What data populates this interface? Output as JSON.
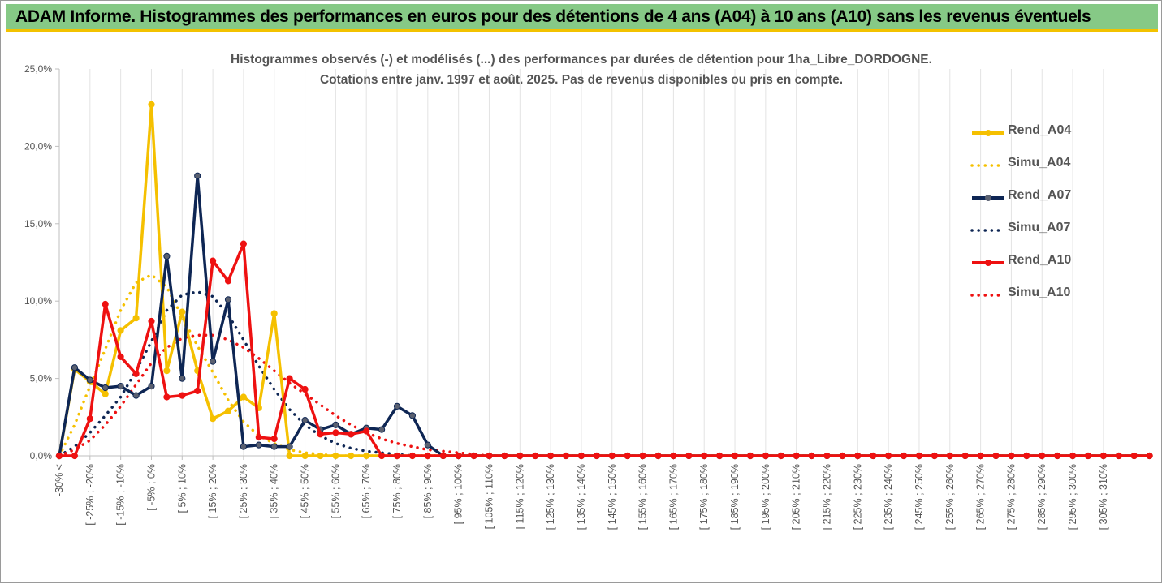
{
  "banner": {
    "title": "ADAM Informe. Histogrammes des performances en euros pour des détentions de 4 ans (A04) à 10 ans (A10) sans les revenus éventuels"
  },
  "chart_data": {
    "type": "line",
    "title_line1": "Histogrammes observés (-) et modélisés (...) des performances par durées de détention pour 1ha_Libre_DORDOGNE.",
    "title_line2": "Cotations entre janv. 1997 et août. 2025. Pas de revenus disponibles ou pris en compte.",
    "xlabel": "",
    "ylabel": "",
    "ylim": [
      0,
      25
    ],
    "yticks": [
      "0,0%",
      "5,0%",
      "10,0%",
      "15,0%",
      "20,0%",
      "25,0%"
    ],
    "grid": "vertical",
    "legend_position": "right",
    "x_labels_shown": [
      "-30% <",
      "[ -25% ; -20%",
      "[ -15% ; -10%",
      "[ -5% ; 0%",
      "[ 5% ; 10%",
      "[ 15% ; 20%",
      "[ 25% ; 30%",
      "[ 35% ; 40%",
      "[ 45% ; 50%",
      "[ 55% ; 60%",
      "[ 65% ; 70%",
      "[ 75% ; 80%",
      "[ 85% ; 90%",
      "[ 95% ; 100%",
      "[ 105% ; 110%",
      "[ 115% ; 120%",
      "[ 125% ; 130%",
      "[ 135% ; 140%",
      "[ 145% ; 150%",
      "[ 155% ; 160%",
      "[ 165% ; 170%",
      "[ 175% ; 180%",
      "[ 185% ; 190%",
      "[ 195% ; 200%",
      "[ 205% ; 210%",
      "[ 215% ; 220%",
      "[ 225% ; 230%",
      "[ 235% ; 240%",
      "[ 245% ; 250%",
      "[ 255% ; 260%",
      "[ 265% ; 270%",
      "[ 275% ; 280%",
      "[ 285% ; 290%",
      "[ 295% ; 300%",
      "[ 305% ; 310%"
    ],
    "series": [
      {
        "name": "Rend_A04",
        "style": "solid",
        "color": "#f5c000",
        "markers": true,
        "values": [
          0.0,
          5.6,
          4.8,
          4.0,
          8.1,
          8.9,
          22.7,
          5.5,
          9.3,
          5.5,
          2.4,
          2.9,
          3.8,
          3.1,
          9.2,
          0.0,
          0.0,
          0.0,
          0.0,
          0.0,
          0.0,
          0.0,
          0.0,
          0.0,
          0.0,
          0.0,
          0.0,
          0.0,
          0.0,
          0.0,
          0.0,
          0.0,
          0.0,
          0.0,
          0.0,
          0.0,
          0.0,
          0.0,
          0.0,
          0.0,
          0.0,
          0.0,
          0.0,
          0.0,
          0.0,
          0.0,
          0.0,
          0.0,
          0.0,
          0.0,
          0.0,
          0.0,
          0.0,
          0.0,
          0.0,
          0.0,
          0.0,
          0.0,
          0.0,
          0.0,
          0.0,
          0.0,
          0.0,
          0.0,
          0.0,
          0.0,
          0.0,
          0.0,
          0.0,
          0.0,
          0.0,
          0.0
        ]
      },
      {
        "name": "Simu_A04",
        "style": "dotted",
        "color": "#f5c000",
        "markers": false,
        "values": [
          0.0,
          2.0,
          4.5,
          6.9,
          9.4,
          11.2,
          11.7,
          10.9,
          9.0,
          7.1,
          5.4,
          3.6,
          2.2,
          1.3,
          0.8,
          0.4,
          0.2,
          0.1,
          0.0,
          0.0,
          0.0,
          0.0,
          0.0,
          0.0,
          0.0,
          0.0,
          0.0,
          0.0,
          0.0,
          0.0,
          0.0,
          0.0,
          0.0,
          0.0,
          0.0,
          0.0,
          0.0,
          0.0,
          0.0,
          0.0,
          0.0,
          0.0,
          0.0,
          0.0,
          0.0,
          0.0,
          0.0,
          0.0,
          0.0,
          0.0,
          0.0,
          0.0,
          0.0,
          0.0,
          0.0,
          0.0,
          0.0,
          0.0,
          0.0,
          0.0,
          0.0,
          0.0,
          0.0,
          0.0,
          0.0,
          0.0,
          0.0,
          0.0,
          0.0,
          0.0,
          0.0,
          0.0
        ]
      },
      {
        "name": "Rend_A07",
        "style": "solid",
        "color": "#0e2654",
        "markers": true,
        "values": [
          0.0,
          5.7,
          4.9,
          4.4,
          4.5,
          3.9,
          4.5,
          12.9,
          5.0,
          18.1,
          6.1,
          10.1,
          0.6,
          0.7,
          0.6,
          0.6,
          2.3,
          1.7,
          2.0,
          1.4,
          1.8,
          1.7,
          3.2,
          2.6,
          0.7,
          0.0,
          0.0,
          0.0,
          0.0,
          0.0,
          0.0,
          0.0,
          0.0,
          0.0,
          0.0,
          0.0,
          0.0,
          0.0,
          0.0,
          0.0,
          0.0,
          0.0,
          0.0,
          0.0,
          0.0,
          0.0,
          0.0,
          0.0,
          0.0,
          0.0,
          0.0,
          0.0,
          0.0,
          0.0,
          0.0,
          0.0,
          0.0,
          0.0,
          0.0,
          0.0,
          0.0,
          0.0,
          0.0,
          0.0,
          0.0,
          0.0,
          0.0,
          0.0,
          0.0,
          0.0,
          0.0,
          0.0
        ]
      },
      {
        "name": "Simu_A07",
        "style": "dotted",
        "color": "#0e2654",
        "markers": false,
        "values": [
          0.0,
          0.6,
          1.5,
          2.6,
          3.8,
          5.5,
          7.4,
          9.4,
          10.4,
          10.6,
          10.3,
          9.1,
          7.5,
          5.8,
          4.3,
          3.0,
          2.0,
          1.3,
          0.8,
          0.5,
          0.3,
          0.2,
          0.1,
          0.0,
          0.0,
          0.0,
          0.0,
          0.0,
          0.0,
          0.0,
          0.0,
          0.0,
          0.0,
          0.0,
          0.0,
          0.0,
          0.0,
          0.0,
          0.0,
          0.0,
          0.0,
          0.0,
          0.0,
          0.0,
          0.0,
          0.0,
          0.0,
          0.0,
          0.0,
          0.0,
          0.0,
          0.0,
          0.0,
          0.0,
          0.0,
          0.0,
          0.0,
          0.0,
          0.0,
          0.0,
          0.0,
          0.0,
          0.0,
          0.0,
          0.0,
          0.0,
          0.0,
          0.0,
          0.0,
          0.0,
          0.0,
          0.0
        ]
      },
      {
        "name": "Rend_A10",
        "style": "solid",
        "color": "#ee1111",
        "markers": true,
        "values": [
          0.0,
          0.0,
          2.4,
          9.8,
          6.4,
          5.3,
          8.7,
          3.8,
          3.9,
          4.2,
          12.6,
          11.3,
          13.7,
          1.2,
          1.1,
          5.0,
          4.3,
          1.4,
          1.5,
          1.4,
          1.6,
          0.0,
          0.0,
          0.0,
          0.0,
          0.0,
          0.0,
          0.0,
          0.0,
          0.0,
          0.0,
          0.0,
          0.0,
          0.0,
          0.0,
          0.0,
          0.0,
          0.0,
          0.0,
          0.0,
          0.0,
          0.0,
          0.0,
          0.0,
          0.0,
          0.0,
          0.0,
          0.0,
          0.0,
          0.0,
          0.0,
          0.0,
          0.0,
          0.0,
          0.0,
          0.0,
          0.0,
          0.0,
          0.0,
          0.0,
          0.0,
          0.0,
          0.0,
          0.0,
          0.0,
          0.0,
          0.0,
          0.0,
          0.0,
          0.0,
          0.0,
          0.0
        ]
      },
      {
        "name": "Simu_A10",
        "style": "dotted",
        "color": "#ee1111",
        "markers": false,
        "values": [
          0.0,
          0.4,
          1.0,
          2.0,
          3.2,
          4.6,
          6.0,
          7.0,
          7.6,
          7.8,
          7.8,
          7.5,
          7.0,
          6.3,
          5.5,
          4.7,
          4.0,
          3.3,
          2.6,
          2.0,
          1.5,
          1.1,
          0.8,
          0.6,
          0.4,
          0.3,
          0.2,
          0.1,
          0.0,
          0.0,
          0.0,
          0.0,
          0.0,
          0.0,
          0.0,
          0.0,
          0.0,
          0.0,
          0.0,
          0.0,
          0.0,
          0.0,
          0.0,
          0.0,
          0.0,
          0.0,
          0.0,
          0.0,
          0.0,
          0.0,
          0.0,
          0.0,
          0.0,
          0.0,
          0.0,
          0.0,
          0.0,
          0.0,
          0.0,
          0.0,
          0.0,
          0.0,
          0.0,
          0.0,
          0.0,
          0.0,
          0.0,
          0.0,
          0.0,
          0.0,
          0.0,
          0.0
        ]
      }
    ]
  }
}
